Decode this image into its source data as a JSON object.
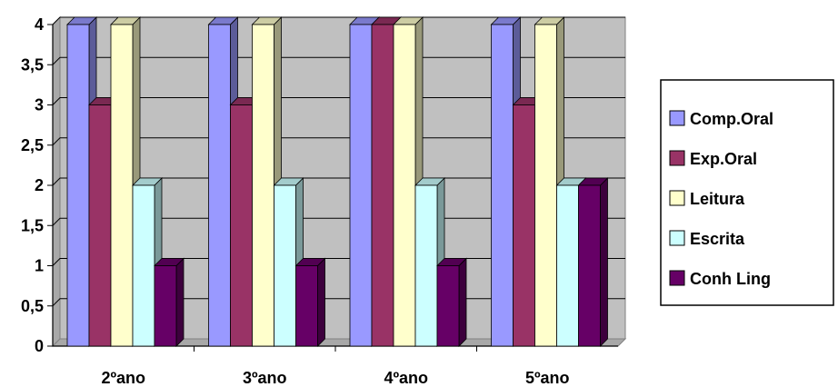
{
  "chart_data": {
    "type": "bar",
    "categories": [
      "2ºano",
      "3ºano",
      "4ºano",
      "5ºano"
    ],
    "series": [
      {
        "name": "Comp.Oral",
        "values": [
          4,
          4,
          4,
          4
        ],
        "color": "#9999FF"
      },
      {
        "name": "Exp.Oral",
        "values": [
          3,
          3,
          4,
          3
        ],
        "color": "#993366"
      },
      {
        "name": "Leitura",
        "values": [
          4,
          4,
          4,
          4
        ],
        "color": "#FFFFCC"
      },
      {
        "name": "Escrita",
        "values": [
          2,
          2,
          2,
          2
        ],
        "color": "#CCFFFF"
      },
      {
        "name": "Conh Ling",
        "values": [
          1,
          1,
          1,
          2
        ],
        "color": "#660066"
      }
    ],
    "yticks": [
      "0",
      "0,5",
      "1",
      "1,5",
      "2",
      "2,5",
      "3",
      "3,5",
      "4"
    ],
    "ylim": [
      0,
      4
    ],
    "title": "",
    "xlabel": "",
    "ylabel": "",
    "grid": true,
    "style": "3d-clustered",
    "wall_color": "#C0C0C0",
    "legend_position": "right"
  }
}
